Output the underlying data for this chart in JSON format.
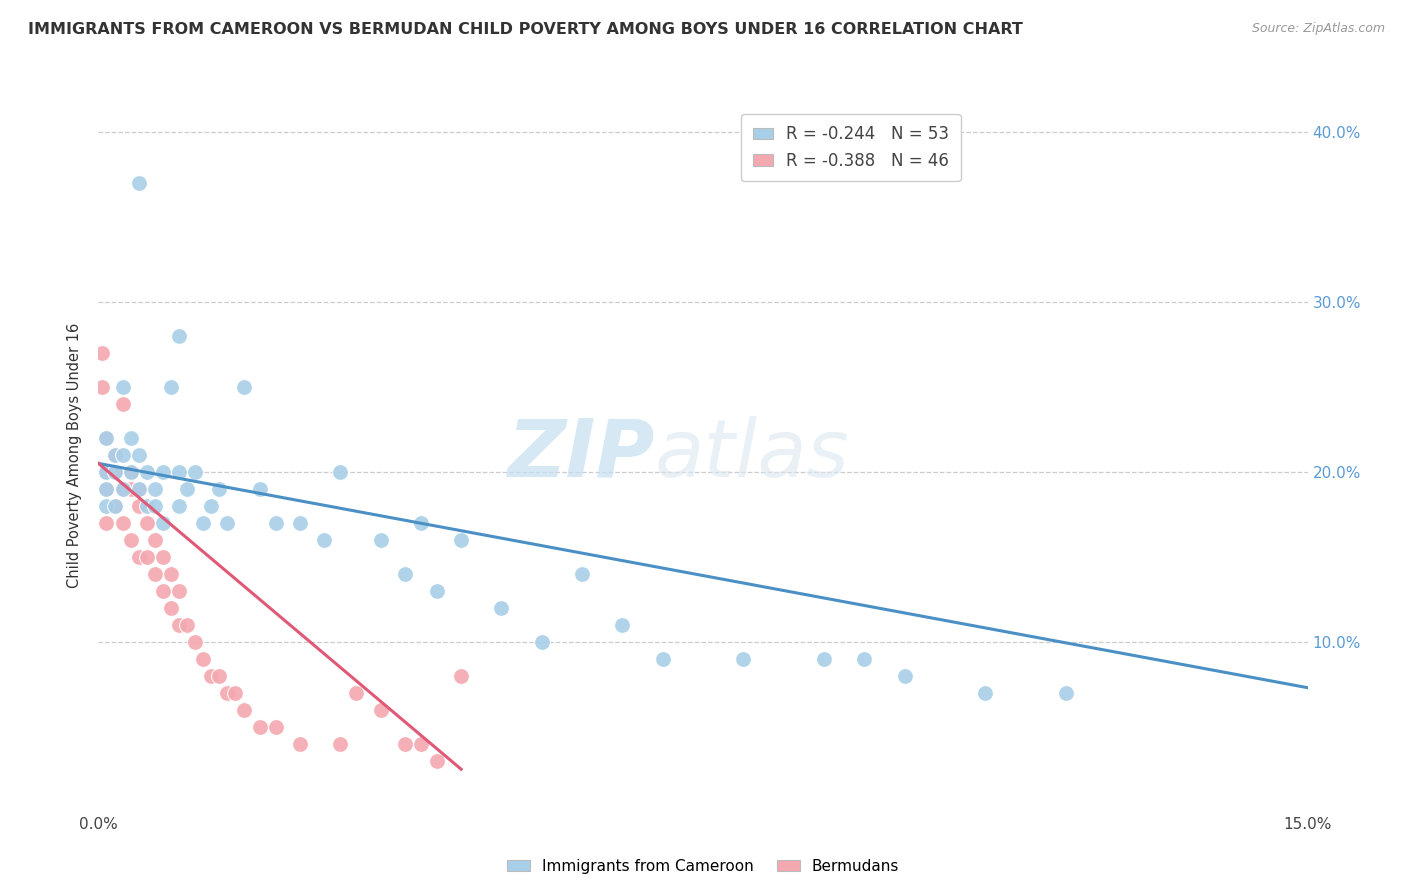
{
  "title": "IMMIGRANTS FROM CAMEROON VS BERMUDAN CHILD POVERTY AMONG BOYS UNDER 16 CORRELATION CHART",
  "source": "Source: ZipAtlas.com",
  "ylabel": "Child Poverty Among Boys Under 16",
  "xlim": [
    0.0,
    0.15
  ],
  "ylim": [
    0.0,
    0.42
  ],
  "legend_r1": "-0.244",
  "legend_n1": "53",
  "legend_r2": "-0.388",
  "legend_n2": "46",
  "color_blue": "#a8cfe8",
  "color_pink": "#f4a8b0",
  "color_blue_line": "#4a90c4",
  "color_pink_line": "#e05a78",
  "watermark_zip": "ZIP",
  "watermark_atlas": "atlas",
  "blue_scatter_x": [
    0.001,
    0.001,
    0.001,
    0.001,
    0.002,
    0.002,
    0.002,
    0.003,
    0.003,
    0.003,
    0.004,
    0.004,
    0.005,
    0.005,
    0.006,
    0.006,
    0.007,
    0.007,
    0.008,
    0.008,
    0.009,
    0.01,
    0.01,
    0.01,
    0.011,
    0.012,
    0.013,
    0.014,
    0.015,
    0.016,
    0.018,
    0.02,
    0.022,
    0.025,
    0.028,
    0.03,
    0.035,
    0.038,
    0.04,
    0.042,
    0.045,
    0.05,
    0.055,
    0.06,
    0.065,
    0.07,
    0.08,
    0.09,
    0.095,
    0.1,
    0.11,
    0.12,
    0.005
  ],
  "blue_scatter_y": [
    0.2,
    0.22,
    0.19,
    0.18,
    0.21,
    0.2,
    0.18,
    0.25,
    0.19,
    0.21,
    0.2,
    0.22,
    0.19,
    0.21,
    0.18,
    0.2,
    0.19,
    0.18,
    0.2,
    0.17,
    0.25,
    0.18,
    0.2,
    0.28,
    0.19,
    0.2,
    0.17,
    0.18,
    0.19,
    0.17,
    0.25,
    0.19,
    0.17,
    0.17,
    0.16,
    0.2,
    0.16,
    0.14,
    0.17,
    0.13,
    0.16,
    0.12,
    0.1,
    0.14,
    0.11,
    0.09,
    0.09,
    0.09,
    0.09,
    0.08,
    0.07,
    0.07,
    0.37
  ],
  "pink_scatter_x": [
    0.0005,
    0.0005,
    0.001,
    0.001,
    0.001,
    0.001,
    0.002,
    0.002,
    0.002,
    0.003,
    0.003,
    0.003,
    0.004,
    0.004,
    0.004,
    0.005,
    0.005,
    0.005,
    0.006,
    0.006,
    0.007,
    0.007,
    0.008,
    0.008,
    0.009,
    0.009,
    0.01,
    0.01,
    0.011,
    0.012,
    0.013,
    0.014,
    0.015,
    0.016,
    0.017,
    0.018,
    0.02,
    0.022,
    0.025,
    0.03,
    0.032,
    0.035,
    0.038,
    0.04,
    0.042,
    0.045
  ],
  "pink_scatter_y": [
    0.25,
    0.27,
    0.22,
    0.2,
    0.19,
    0.17,
    0.21,
    0.2,
    0.18,
    0.24,
    0.19,
    0.17,
    0.2,
    0.19,
    0.16,
    0.19,
    0.18,
    0.15,
    0.17,
    0.15,
    0.16,
    0.14,
    0.15,
    0.13,
    0.14,
    0.12,
    0.13,
    0.11,
    0.11,
    0.1,
    0.09,
    0.08,
    0.08,
    0.07,
    0.07,
    0.06,
    0.05,
    0.05,
    0.04,
    0.04,
    0.07,
    0.06,
    0.04,
    0.04,
    0.03,
    0.08
  ],
  "blue_line_x": [
    0.0,
    0.15
  ],
  "blue_line_y": [
    0.205,
    0.073
  ],
  "pink_line_x": [
    0.0,
    0.045
  ],
  "pink_line_y": [
    0.205,
    0.025
  ],
  "background_color": "#ffffff",
  "grid_color": "#cccccc",
  "title_color": "#333333",
  "right_label_color": "#5b9bd5",
  "title_fontsize": 11.5,
  "axis_label_fontsize": 10
}
